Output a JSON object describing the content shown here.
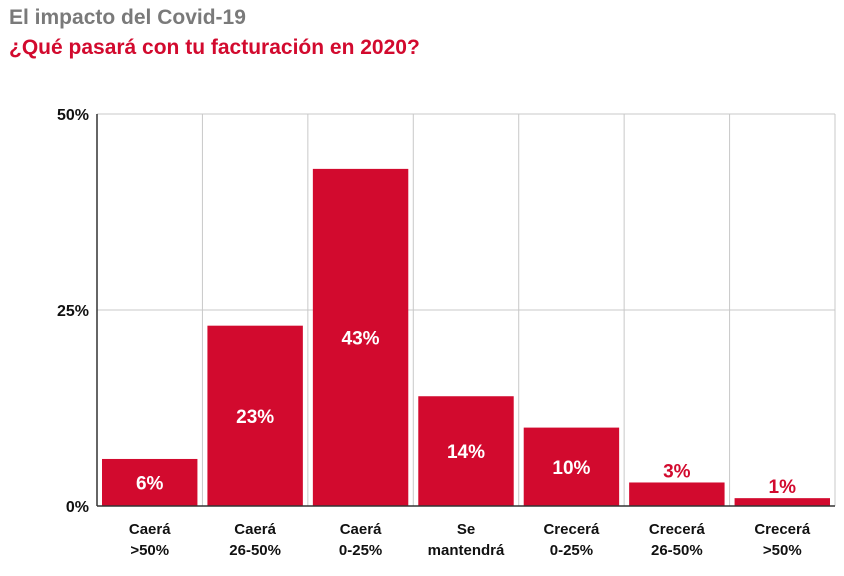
{
  "header": {
    "title": "El impacto del Covid-19",
    "subtitle": "¿Qué pasará con tu facturación en 2020?"
  },
  "colors": {
    "bar": "#d20a2e",
    "subtitle": "#d20a2e",
    "title": "#7a7a7a",
    "grid": "#c8c8c8",
    "label_inside": "#ffffff",
    "label_outside": "#d20a2e"
  },
  "chart_data": {
    "type": "bar",
    "title": "¿Qué pasará con tu facturación en 2020?",
    "xlabel": "",
    "ylabel": "",
    "categories": [
      [
        "Caerá",
        ">50%"
      ],
      [
        "Caerá",
        "26-50%"
      ],
      [
        "Caerá",
        "0-25%"
      ],
      [
        "Se",
        "mantendrá"
      ],
      [
        "Crecerá",
        "0-25%"
      ],
      [
        "Crecerá",
        "26-50%"
      ],
      [
        "Crecerá",
        ">50%"
      ]
    ],
    "values": [
      6,
      23,
      43,
      14,
      10,
      3,
      1
    ],
    "value_labels": [
      "6%",
      "23%",
      "43%",
      "14%",
      "10%",
      "3%",
      "1%"
    ],
    "yticks": [
      0,
      25,
      50
    ],
    "ytick_labels": [
      "0%",
      "25%",
      "50%"
    ],
    "ylim": [
      0,
      50
    ],
    "grid": true,
    "legend": "none"
  }
}
